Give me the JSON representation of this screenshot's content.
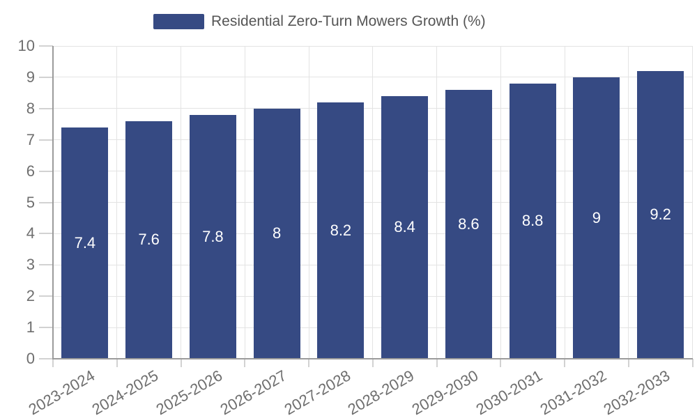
{
  "chart_data": {
    "type": "bar",
    "legend": "Residential Zero-Turn Mowers Growth (%)",
    "categories": [
      "2023-2024",
      "2024-2025",
      "2025-2026",
      "2026-2027",
      "2027-2028",
      "2028-2029",
      "2029-2030",
      "2030-2031",
      "2031-2032",
      "2032-2033"
    ],
    "values": [
      7.4,
      7.6,
      7.8,
      8,
      8.2,
      8.4,
      8.6,
      8.8,
      9,
      9.2
    ],
    "ylabel": "",
    "xlabel": "",
    "ylim": [
      0,
      10
    ],
    "yticks": [
      0,
      1,
      2,
      3,
      4,
      5,
      6,
      7,
      8,
      9,
      10
    ],
    "grid": "on",
    "legend_position": "top-center",
    "colors": {
      "bar": "#364a83",
      "grid": "#e3e3e3",
      "axis": "#9b9b9b",
      "tick": "#d2d2d2",
      "tick_label": "#6e6e6e",
      "legend_text": "#555555",
      "value_label": "#ffffff",
      "background": "#ffffff"
    }
  }
}
